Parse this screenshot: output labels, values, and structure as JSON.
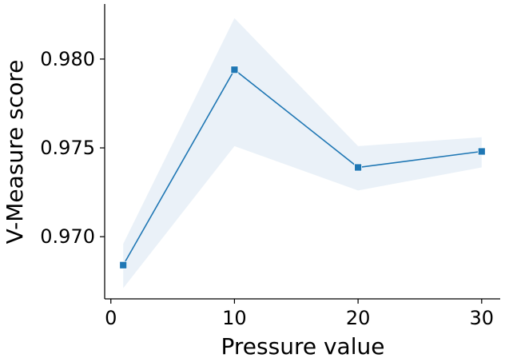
{
  "chart_data": {
    "type": "line",
    "title": "",
    "xlabel": "Pressure value",
    "ylabel": "V-Measure score",
    "xlim": [
      -0.5,
      31.5
    ],
    "ylim": [
      0.9665,
      0.9831
    ],
    "xticks": [
      0,
      10,
      20,
      30
    ],
    "xtick_labels": [
      "0",
      "10",
      "20",
      "30"
    ],
    "yticks": [
      0.97,
      0.975,
      0.98
    ],
    "ytick_labels": [
      "0.970",
      "0.975",
      "0.980"
    ],
    "grid": false,
    "series": [
      {
        "x": [
          1,
          10,
          20,
          30
        ],
        "y": [
          0.9684,
          0.9794,
          0.9739,
          0.9748
        ],
        "ci_lower": [
          0.9671,
          0.9751,
          0.9726,
          0.9739
        ],
        "ci_upper": [
          0.9696,
          0.9823,
          0.9751,
          0.9756
        ],
        "marker": "square",
        "color": "#1f77b4",
        "band_color": "#dce8f3"
      }
    ]
  }
}
